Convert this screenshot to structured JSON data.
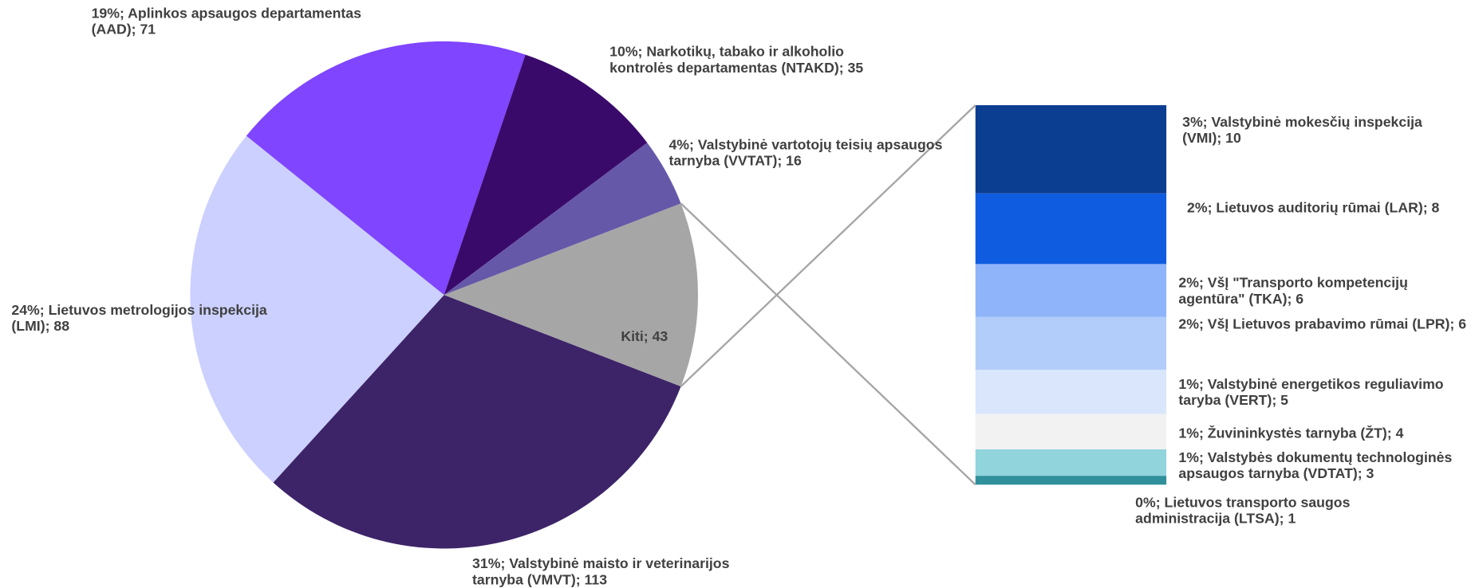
{
  "chart_data": [
    {
      "type": "pie",
      "values": [
        113,
        88,
        71,
        35,
        16,
        43
      ],
      "value_labels": [
        "31%; Valstybinė maisto ir veterinarijos tarnyba (VMVT); 113",
        "24%; Lietuvos metrologijos inspekcija (LMI); 88",
        "19%; Aplinkos apsaugos departamentas (AAD); 71",
        "10%; Narkotikų, tabako ir alkoholio kontrolės departamentas (NTAKD); 35",
        "4%; Valstybinė vartotojų teisių apsaugos tarnyba (VVTAT); 16",
        "Kiti; 43"
      ],
      "colors": [
        "#3d2468",
        "#ccd0ff",
        "#7f45ff",
        "#3a0a6b",
        "#6658a8",
        "#a6a6a6"
      ]
    },
    {
      "type": "stacked-bar",
      "values": [
        10,
        8,
        6,
        6,
        5,
        4,
        3,
        1
      ],
      "value_labels": [
        "3%; Valstybinė mokesčių inspekcija (VMI); 10",
        "2%; Lietuvos auditorių rūmai (LAR); 8",
        "2%; VšĮ \"Transporto kompetencijų agentūra\" (TKA); 6",
        "2%; VšĮ Lietuvos prabavimo rūmai (LPR); 6",
        "1%; Valstybinė energetikos reguliavimo taryba (VERT); 5",
        "1%; Žuvininkystės tarnyba (ŽT); 4",
        "1%; Valstybės dokumentų technologinės apsaugos tarnyba (VDTAT); 3",
        "0%; Lietuvos transporto saugos administracija (LTSA); 1"
      ],
      "colors": [
        "#0b3d91",
        "#0f5ce0",
        "#90b4fa",
        "#b3cdfa",
        "#d9e6fc",
        "#f2f2f2",
        "#91d4dc",
        "#2f8f9a"
      ]
    }
  ]
}
